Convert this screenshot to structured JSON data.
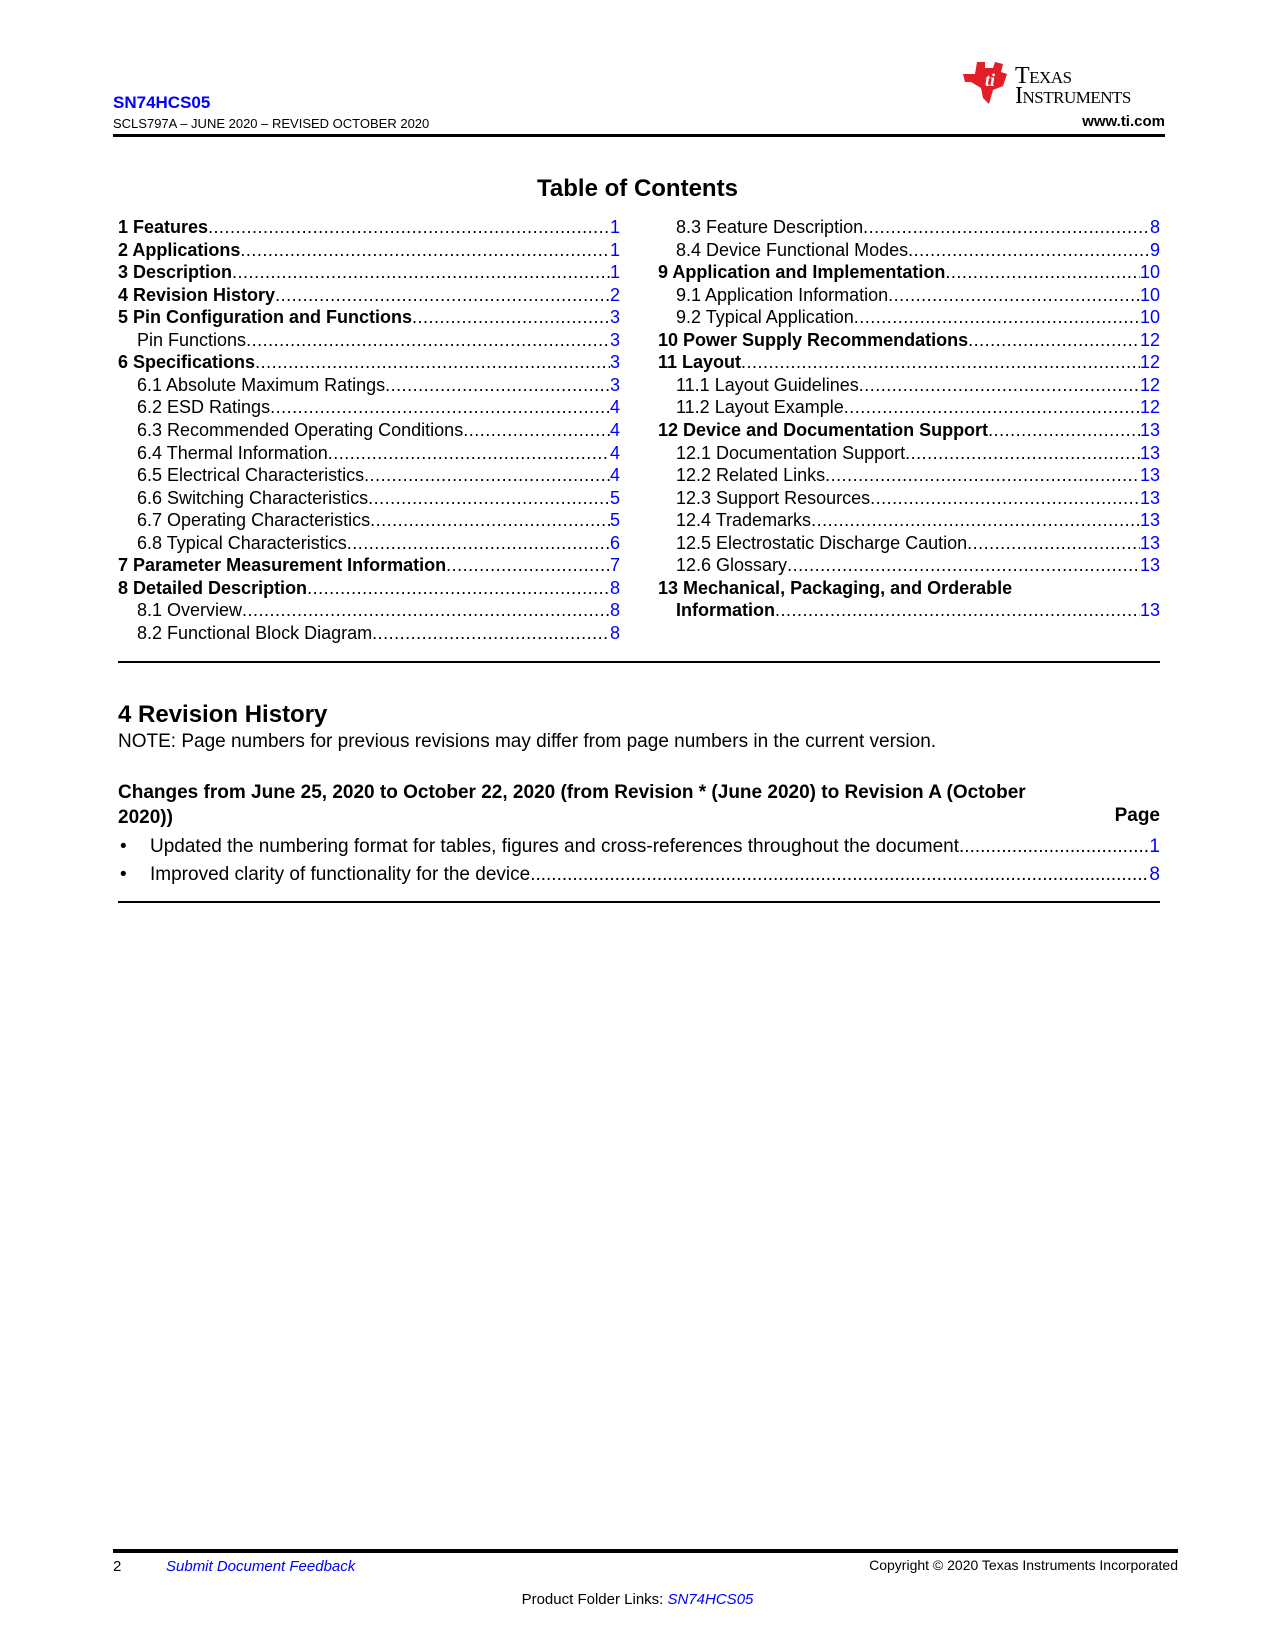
{
  "header": {
    "doc_id": "SN74HCS05",
    "doc_revision": "SCLS797A – JUNE 2020 – REVISED OCTOBER 2020",
    "logo_text_1": "Texas",
    "logo_text_2": "Instruments",
    "url": "www.ti.com",
    "brand_color": "#e21e26"
  },
  "toc": {
    "title": "Table of Contents",
    "left": [
      {
        "label": "1 Features",
        "page": "1",
        "bold": true
      },
      {
        "label": "2 Applications",
        "page": "1",
        "bold": true
      },
      {
        "label": "3 Description",
        "page": "1",
        "bold": true
      },
      {
        "label": "4 Revision History",
        "page": "2",
        "bold": true
      },
      {
        "label": "5 Pin Configuration and Functions",
        "page": "3",
        "bold": true
      },
      {
        "label": "Pin Functions",
        "page": "3",
        "bold": false
      },
      {
        "label": "6 Specifications",
        "page": "3",
        "bold": true
      },
      {
        "label": "6.1 Absolute Maximum Ratings ",
        "page": "3",
        "bold": false
      },
      {
        "label": "6.2 ESD Ratings ",
        "page": "4",
        "bold": false
      },
      {
        "label": "6.3 Recommended Operating Conditions ",
        "page": "4",
        "bold": false
      },
      {
        "label": "6.4 Thermal Information ",
        "page": "4",
        "bold": false
      },
      {
        "label": "6.5 Electrical Characteristics ",
        "page": "4",
        "bold": false
      },
      {
        "label": "6.6 Switching Characteristics ",
        "page": "5",
        "bold": false
      },
      {
        "label": "6.7 Operating Characteristics ",
        "page": "5",
        "bold": false
      },
      {
        "label": "6.8 Typical Characteristics",
        "page": "6",
        "bold": false
      },
      {
        "label": "7 Parameter Measurement Information",
        "page": "7",
        "bold": true
      },
      {
        "label": "8 Detailed Description",
        "page": "8",
        "bold": true
      },
      {
        "label": "8.1 Overview",
        "page": "8",
        "bold": false
      },
      {
        "label": "8.2 Functional Block Diagram",
        "page": "8",
        "bold": false
      }
    ],
    "right": [
      {
        "label": "8.3 Feature Description",
        "page": "8",
        "bold": false
      },
      {
        "label": "8.4 Device Functional Modes",
        "page": "9",
        "bold": false
      },
      {
        "label": "9 Application and Implementation",
        "page": "10",
        "bold": true
      },
      {
        "label": "9.1 Application Information",
        "page": "10",
        "bold": false
      },
      {
        "label": "9.2 Typical Application",
        "page": "10",
        "bold": false
      },
      {
        "label": "10 Power Supply Recommendations",
        "page": "12",
        "bold": true
      },
      {
        "label": "11 Layout",
        "page": "12",
        "bold": true
      },
      {
        "label": "11.1 Layout Guidelines",
        "page": "12",
        "bold": false
      },
      {
        "label": "11.2 Layout Example",
        "page": "12",
        "bold": false
      },
      {
        "label": "12 Device and Documentation Support",
        "page": "13",
        "bold": true
      },
      {
        "label": "12.1 Documentation Support",
        "page": "13",
        "bold": false
      },
      {
        "label": "12.2 Related Links",
        "page": "13",
        "bold": false
      },
      {
        "label": "12.3 Support Resources",
        "page": "13",
        "bold": false
      },
      {
        "label": "12.4 Trademarks",
        "page": "13",
        "bold": false
      },
      {
        "label": "12.5 Electrostatic Discharge Caution",
        "page": "13",
        "bold": false
      },
      {
        "label": "12.6 Glossary",
        "page": "13",
        "bold": false
      },
      {
        "label": "13 Mechanical, Packaging, and Orderable",
        "page": "",
        "bold": true
      },
      {
        "label": "Information",
        "page": "13",
        "bold": true
      }
    ]
  },
  "revision_history": {
    "heading": "4 Revision History",
    "note": "NOTE: Page numbers for previous revisions may differ from page numbers in the current version.",
    "changes_title": "Changes from June 25, 2020 to October 22, 2020 (from Revision * (June 2020) to Revision A (October 2020))",
    "page_header": "Page",
    "items": [
      {
        "text": "Updated the numbering format for tables, figures and cross-references throughout the document",
        "page": "1"
      },
      {
        "text": "Improved clarity of functionality for the device",
        "page": "8"
      }
    ]
  },
  "footer": {
    "page_number": "2",
    "feedback_link": "Submit Document Feedback",
    "copyright": "Copyright © 2020 Texas Instruments Incorporated",
    "product_folder_label": "Product Folder Links: ",
    "product_folder_link": "SN74HCS05"
  }
}
